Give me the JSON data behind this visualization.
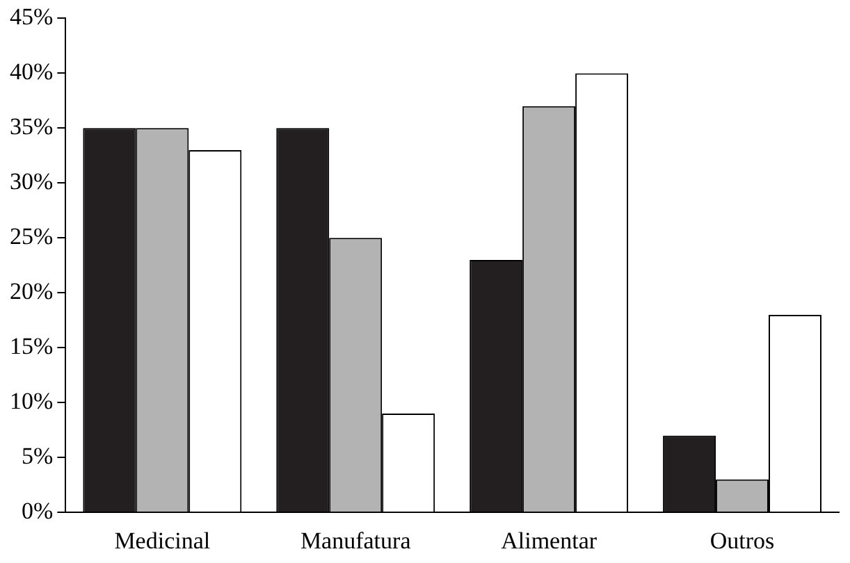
{
  "chart_data": {
    "type": "bar",
    "categories": [
      "Medicinal",
      "Manufatura",
      "Alimentar",
      "Outros"
    ],
    "series": [
      {
        "color": "#231f20",
        "values": [
          35,
          35,
          23,
          7
        ]
      },
      {
        "color": "#b3b3b3",
        "values": [
          35,
          25,
          37,
          3
        ]
      },
      {
        "color": "#ffffff",
        "values": [
          33,
          9,
          40,
          18
        ]
      }
    ],
    "ylim": [
      0,
      45
    ],
    "yticks": [
      {
        "value": 0,
        "label": "0%"
      },
      {
        "value": 5,
        "label": "5%"
      },
      {
        "value": 10,
        "label": "10%"
      },
      {
        "value": 15,
        "label": "15%"
      },
      {
        "value": 20,
        "label": "20%"
      },
      {
        "value": 25,
        "label": "25%"
      },
      {
        "value": 30,
        "label": "30%"
      },
      {
        "value": 35,
        "label": "35%"
      },
      {
        "value": 40,
        "label": "40%"
      },
      {
        "value": 45,
        "label": "45%"
      }
    ],
    "grid": false,
    "legend": false
  }
}
